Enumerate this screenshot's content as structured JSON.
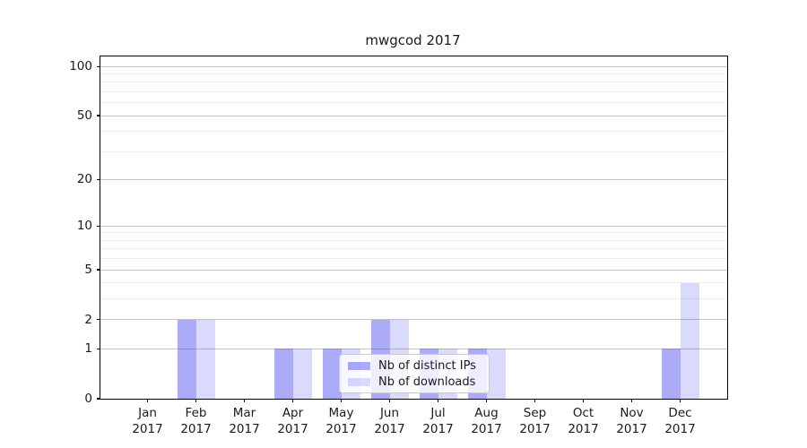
{
  "chart_data": {
    "type": "bar",
    "title": "mwgcod 2017",
    "categories": [
      {
        "month": "Jan",
        "year": "2017"
      },
      {
        "month": "Feb",
        "year": "2017"
      },
      {
        "month": "Mar",
        "year": "2017"
      },
      {
        "month": "Apr",
        "year": "2017"
      },
      {
        "month": "May",
        "year": "2017"
      },
      {
        "month": "Jun",
        "year": "2017"
      },
      {
        "month": "Jul",
        "year": "2017"
      },
      {
        "month": "Aug",
        "year": "2017"
      },
      {
        "month": "Sep",
        "year": "2017"
      },
      {
        "month": "Oct",
        "year": "2017"
      },
      {
        "month": "Nov",
        "year": "2017"
      },
      {
        "month": "Dec",
        "year": "2017"
      }
    ],
    "series": [
      {
        "name": "Nb of distinct IPs",
        "color_hex": "#aaaaf4",
        "color_rgba": "rgba(68,68,238,0.45)",
        "values": [
          0,
          2,
          0,
          1,
          1,
          2,
          1,
          1,
          0,
          0,
          0,
          1
        ]
      },
      {
        "name": "Nb of downloads",
        "color_hex": "#dcdcfa",
        "color_rgba": "rgba(68,68,238,0.2)",
        "values": [
          0,
          2,
          0,
          1,
          1,
          2,
          1,
          1,
          0,
          0,
          0,
          4
        ]
      }
    ],
    "yscale": "log1p",
    "ylim": [
      0,
      115
    ],
    "y_major_ticks": [
      0,
      1,
      2,
      5,
      10,
      20,
      50,
      100
    ],
    "y_minor_ticks": [
      3,
      4,
      6,
      7,
      8,
      9,
      30,
      40,
      60,
      70,
      80,
      90
    ],
    "grid": {
      "major_color": "#c4c4c4",
      "minor_color": "#ececec"
    },
    "legend_position": "inside-bottom-center",
    "axis_color": "#000000",
    "text_color": "#1a1a1a"
  }
}
